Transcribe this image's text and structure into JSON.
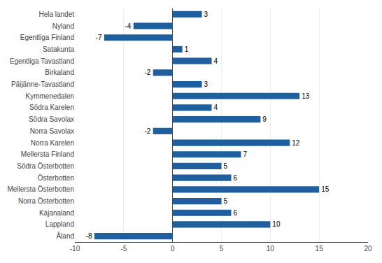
{
  "chart_data": {
    "type": "bar",
    "orientation": "horizontal",
    "categories": [
      "Hela landet",
      "Nyland",
      "Egentliga Finland",
      "Satakunta",
      "Egentliga Tavastland",
      "Birkaland",
      "Päijänne-Tavastland",
      "Kymmenedalen",
      "Södra Karelen",
      "Södra Savolax",
      "Norra Savolax",
      "Norra Karelen",
      "Mellersta Finland",
      "Södra Österbotten",
      "Österbotten",
      "Mellersta Österbotten",
      "Norra Österbotten",
      "Kajanaland",
      "Lappland",
      "Åland"
    ],
    "values": [
      3,
      -4,
      -7,
      1,
      4,
      -2,
      3,
      13,
      4,
      9,
      -2,
      12,
      7,
      5,
      6,
      15,
      5,
      6,
      10,
      -8
    ],
    "color": "#1F5F9E",
    "xlim": [
      -10,
      20
    ],
    "xticks": [
      -10,
      -5,
      0,
      5,
      10,
      15,
      20
    ],
    "grid": true,
    "data_labels": true
  }
}
